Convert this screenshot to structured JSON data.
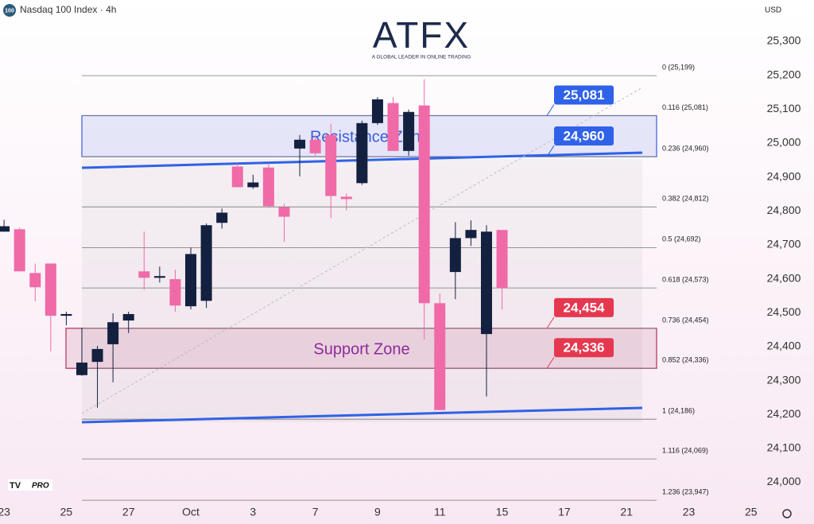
{
  "header": {
    "symbol_badge": "100",
    "title": "Nasdaq 100 Index · 4h",
    "currency": "USD"
  },
  "logo": {
    "name": "ATFX",
    "tagline": "A GLOBAL LEADER IN ONLINE TRADING"
  },
  "watermark": "PRO",
  "chart_data": {
    "type": "candlestick",
    "up_color": "#13203f",
    "down_color": "#f06aa8",
    "candles": [
      {
        "open": 24739,
        "high": 24774,
        "low": 24739,
        "close": 24755
      },
      {
        "open": 24746,
        "high": 24751,
        "low": 24622,
        "close": 24622
      },
      {
        "open": 24617,
        "high": 24645,
        "low": 24533,
        "close": 24575
      },
      {
        "open": 24645,
        "high": 24645,
        "low": 24386,
        "close": 24491
      },
      {
        "open": 24491,
        "high": 24503,
        "low": 24463,
        "close": 24496
      },
      {
        "open": 24316,
        "high": 24456,
        "low": 24314,
        "close": 24353
      },
      {
        "open": 24355,
        "high": 24402,
        "low": 24220,
        "close": 24393
      },
      {
        "open": 24407,
        "high": 24498,
        "low": 24295,
        "close": 24472
      },
      {
        "open": 24477,
        "high": 24503,
        "low": 24440,
        "close": 24496
      },
      {
        "open": 24622,
        "high": 24739,
        "low": 24568,
        "close": 24603
      },
      {
        "open": 24603,
        "high": 24636,
        "low": 24589,
        "close": 24608
      },
      {
        "open": 24599,
        "high": 24627,
        "low": 24503,
        "close": 24521
      },
      {
        "open": 24519,
        "high": 24692,
        "low": 24510,
        "close": 24673
      },
      {
        "open": 24535,
        "high": 24763,
        "low": 24514,
        "close": 24758
      },
      {
        "open": 24765,
        "high": 24807,
        "low": 24748,
        "close": 24795
      },
      {
        "open": 24931,
        "high": 24940,
        "low": 24870,
        "close": 24870
      },
      {
        "open": 24870,
        "high": 24907,
        "low": 24865,
        "close": 24884
      },
      {
        "open": 24928,
        "high": 24940,
        "low": 24809,
        "close": 24814
      },
      {
        "open": 24811,
        "high": 24821,
        "low": 24709,
        "close": 24783
      },
      {
        "open": 24984,
        "high": 25024,
        "low": 24902,
        "close": 25010
      },
      {
        "open": 25010,
        "high": 25024,
        "low": 24963,
        "close": 24970
      },
      {
        "open": 25024,
        "high": 25057,
        "low": 24779,
        "close": 24844
      },
      {
        "open": 24842,
        "high": 24851,
        "low": 24802,
        "close": 24835
      },
      {
        "open": 24882,
        "high": 25066,
        "low": 24877,
        "close": 25059
      },
      {
        "open": 25059,
        "high": 25136,
        "low": 25054,
        "close": 25129
      },
      {
        "open": 25118,
        "high": 25136,
        "low": 24977,
        "close": 24977
      },
      {
        "open": 24977,
        "high": 25099,
        "low": 24963,
        "close": 25092
      },
      {
        "open": 25111,
        "high": 25188,
        "low": 24421,
        "close": 24528
      },
      {
        "open": 24528,
        "high": 24556,
        "low": 24213,
        "close": 24213
      },
      {
        "open": 24620,
        "high": 24767,
        "low": 24540,
        "close": 24720
      },
      {
        "open": 24720,
        "high": 24772,
        "low": 24697,
        "close": 24744
      },
      {
        "open": 24437,
        "high": 24758,
        "low": 24253,
        "close": 24739
      },
      {
        "open": 24744,
        "high": 24744,
        "low": 24510,
        "close": 24573
      }
    ],
    "xlim": [
      -0.26,
      48.52
    ],
    "xticks": [
      {
        "value": 0,
        "label": "23"
      },
      {
        "value": 4,
        "label": "25"
      },
      {
        "value": 8,
        "label": "27"
      },
      {
        "value": 12,
        "label": "Oct"
      },
      {
        "value": 16,
        "label": "3"
      },
      {
        "value": 20,
        "label": "7"
      },
      {
        "value": 24,
        "label": "9"
      },
      {
        "value": 28,
        "label": "11"
      },
      {
        "value": 32,
        "label": "15"
      },
      {
        "value": 36,
        "label": "17"
      },
      {
        "value": 40,
        "label": "21"
      },
      {
        "value": 44,
        "label": "23"
      },
      {
        "value": 48,
        "label": "25"
      }
    ],
    "ylim": [
      23945,
      25422
    ],
    "yticks": [
      {
        "value": 24000,
        "label": "24,000"
      },
      {
        "value": 24100,
        "label": "24,100"
      },
      {
        "value": 24200,
        "label": "24,200"
      },
      {
        "value": 24300,
        "label": "24,300"
      },
      {
        "value": 24400,
        "label": "24,400"
      },
      {
        "value": 24500,
        "label": "24,500"
      },
      {
        "value": 24600,
        "label": "24,600"
      },
      {
        "value": 24700,
        "label": "24,700"
      },
      {
        "value": 24800,
        "label": "24,800"
      },
      {
        "value": 24900,
        "label": "24,900"
      },
      {
        "value": 25000,
        "label": "25,000"
      },
      {
        "value": 25100,
        "label": "25,100"
      },
      {
        "value": 25200,
        "label": "25,200"
      },
      {
        "value": 25300,
        "label": "25,300"
      }
    ],
    "fib_levels": [
      {
        "value": 25199,
        "label": "0 (25,199)"
      },
      {
        "value": 25081,
        "label": "0.116 (25,081)"
      },
      {
        "value": 24960,
        "label": "0.236 (24,960)"
      },
      {
        "value": 24812,
        "label": "0.382 (24,812)"
      },
      {
        "value": 24692,
        "label": "0.5 (24,692)"
      },
      {
        "value": 24573,
        "label": "0.618 (24,573)"
      },
      {
        "value": 24454,
        "label": "0.736 (24,454)"
      },
      {
        "value": 24336,
        "label": "0.852 (24,336)"
      },
      {
        "value": 24186,
        "label": "1 (24,186)"
      },
      {
        "value": 24069,
        "label": "1.116 (24,069)"
      },
      {
        "value": 23947,
        "label": "1.236 (23,947)"
      }
    ],
    "zones": [
      {
        "name": "Resistance Zone",
        "from": 24960,
        "to": 25081,
        "color": "#3b5bdb"
      },
      {
        "name": "Support Zone",
        "from": 24336,
        "to": 24454,
        "color": "#b0305a"
      }
    ],
    "zone_label_colors": [
      "#3b5bdb",
      "#8e2a9e"
    ],
    "price_tags": [
      {
        "value": 25081,
        "label": "25,081",
        "color": "#2f62e8"
      },
      {
        "value": 24960,
        "label": "24,960",
        "color": "#2f62e8"
      },
      {
        "value": 24454,
        "label": "24,454",
        "color": "#e5384f"
      },
      {
        "value": 24336,
        "label": "24,336",
        "color": "#e5384f"
      }
    ]
  }
}
